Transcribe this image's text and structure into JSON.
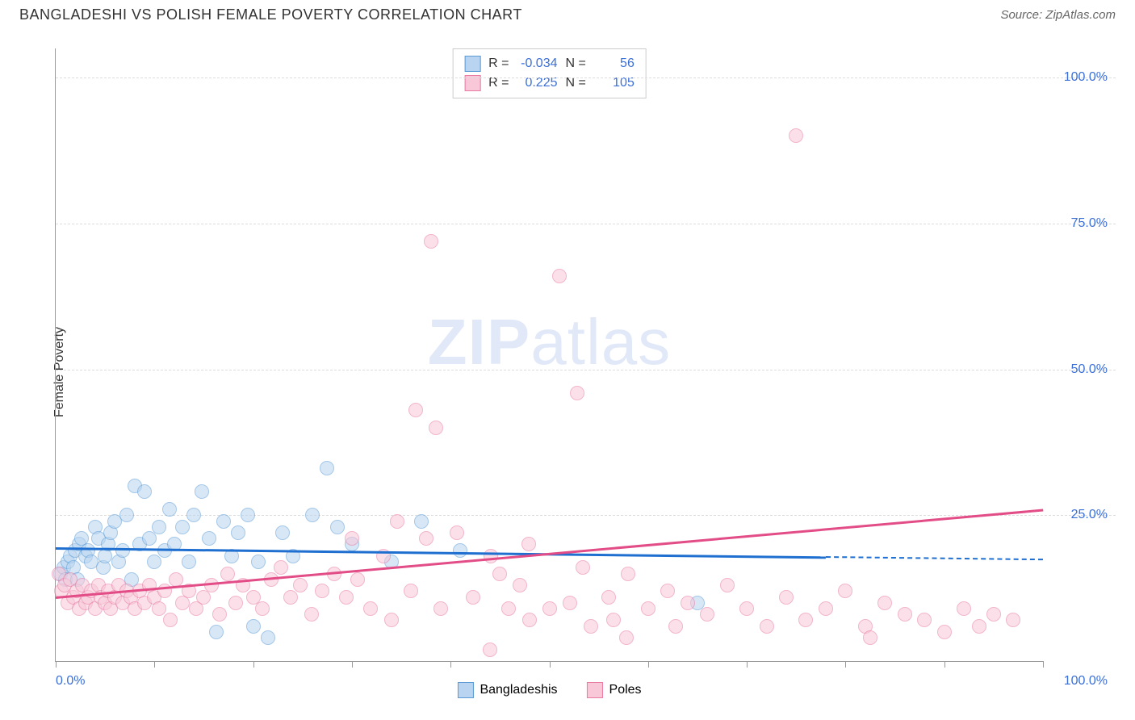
{
  "header": {
    "title": "BANGLADESHI VS POLISH FEMALE POVERTY CORRELATION CHART",
    "source": "Source: ZipAtlas.com"
  },
  "chart": {
    "type": "scatter",
    "y_axis_label": "Female Poverty",
    "background_color": "#ffffff",
    "grid_color": "#dddddd",
    "axis_color": "#999999",
    "ylim": [
      0,
      105
    ],
    "xlim": [
      0,
      100
    ],
    "y_ticks": [
      {
        "v": 25,
        "label": "25.0%"
      },
      {
        "v": 50,
        "label": "50.0%"
      },
      {
        "v": 75,
        "label": "75.0%"
      },
      {
        "v": 100,
        "label": "100.0%"
      }
    ],
    "x_ticks_at": [
      0,
      10,
      20,
      30,
      40,
      50,
      60,
      70,
      80,
      90,
      100
    ],
    "x_labels": [
      {
        "v": 0,
        "label": "0.0%"
      },
      {
        "v": 100,
        "label": "100.0%"
      }
    ],
    "watermark": {
      "bold": "ZIP",
      "rest": "atlas"
    },
    "series": [
      {
        "id": "bangladeshis",
        "label": "Bangladeshis",
        "fill": "#b8d4f0",
        "stroke": "#5a9bd5",
        "fill_opacity": 0.55,
        "marker_r": 9,
        "trend": {
          "color": "#1f6fd0",
          "y_start": 19.5,
          "y_end": 17.5,
          "solid_until_x": 78
        },
        "stats": {
          "R": "-0.034",
          "N": "56"
        },
        "points": [
          [
            0.5,
            15
          ],
          [
            0.8,
            16
          ],
          [
            1.0,
            14
          ],
          [
            1.2,
            17
          ],
          [
            1.5,
            18
          ],
          [
            1.8,
            16
          ],
          [
            2.0,
            19
          ],
          [
            2.2,
            14
          ],
          [
            2.4,
            20
          ],
          [
            2.6,
            21
          ],
          [
            3.0,
            18
          ],
          [
            3.3,
            19
          ],
          [
            3.6,
            17
          ],
          [
            4.0,
            23
          ],
          [
            4.3,
            21
          ],
          [
            4.8,
            16
          ],
          [
            5.0,
            18
          ],
          [
            5.3,
            20
          ],
          [
            5.6,
            22
          ],
          [
            6.0,
            24
          ],
          [
            6.4,
            17
          ],
          [
            6.8,
            19
          ],
          [
            7.2,
            25
          ],
          [
            7.7,
            14
          ],
          [
            8.0,
            30
          ],
          [
            8.5,
            20
          ],
          [
            9.0,
            29
          ],
          [
            9.5,
            21
          ],
          [
            10.0,
            17
          ],
          [
            10.5,
            23
          ],
          [
            11.0,
            19
          ],
          [
            11.5,
            26
          ],
          [
            12.0,
            20
          ],
          [
            12.8,
            23
          ],
          [
            13.5,
            17
          ],
          [
            14.0,
            25
          ],
          [
            14.8,
            29
          ],
          [
            15.5,
            21
          ],
          [
            16.3,
            5
          ],
          [
            17.0,
            24
          ],
          [
            17.8,
            18
          ],
          [
            18.5,
            22
          ],
          [
            19.5,
            25
          ],
          [
            20.0,
            6
          ],
          [
            20.5,
            17
          ],
          [
            21.5,
            4
          ],
          [
            23.0,
            22
          ],
          [
            24.0,
            18
          ],
          [
            26.0,
            25
          ],
          [
            27.5,
            33
          ],
          [
            28.5,
            23
          ],
          [
            30.0,
            20
          ],
          [
            34.0,
            17
          ],
          [
            37.0,
            24
          ],
          [
            41.0,
            19
          ],
          [
            65.0,
            10
          ]
        ]
      },
      {
        "id": "poles",
        "label": "Poles",
        "fill": "#f8c8d8",
        "stroke": "#e87aa4",
        "fill_opacity": 0.55,
        "marker_r": 9,
        "trend": {
          "color": "#e34d87",
          "y_start": 11,
          "y_end": 26,
          "solid_until_x": 100
        },
        "stats": {
          "R": "0.225",
          "N": "105"
        },
        "points": [
          [
            0.3,
            15
          ],
          [
            0.6,
            12
          ],
          [
            0.9,
            13
          ],
          [
            1.2,
            10
          ],
          [
            1.5,
            14
          ],
          [
            1.8,
            11
          ],
          [
            2.1,
            12
          ],
          [
            2.4,
            9
          ],
          [
            2.7,
            13
          ],
          [
            3.0,
            10
          ],
          [
            3.3,
            11
          ],
          [
            3.6,
            12
          ],
          [
            4.0,
            9
          ],
          [
            4.3,
            13
          ],
          [
            4.6,
            11
          ],
          [
            5.0,
            10
          ],
          [
            5.3,
            12
          ],
          [
            5.6,
            9
          ],
          [
            6.0,
            11
          ],
          [
            6.4,
            13
          ],
          [
            6.8,
            10
          ],
          [
            7.2,
            12
          ],
          [
            7.6,
            11
          ],
          [
            8.0,
            9
          ],
          [
            8.5,
            12
          ],
          [
            9.0,
            10
          ],
          [
            9.5,
            13
          ],
          [
            10.0,
            11
          ],
          [
            10.5,
            9
          ],
          [
            11.0,
            12
          ],
          [
            11.6,
            7
          ],
          [
            12.2,
            14
          ],
          [
            12.8,
            10
          ],
          [
            13.5,
            12
          ],
          [
            14.2,
            9
          ],
          [
            15.0,
            11
          ],
          [
            15.8,
            13
          ],
          [
            16.6,
            8
          ],
          [
            17.4,
            15
          ],
          [
            18.2,
            10
          ],
          [
            19.0,
            13
          ],
          [
            20.0,
            11
          ],
          [
            20.9,
            9
          ],
          [
            21.8,
            14
          ],
          [
            22.8,
            16
          ],
          [
            23.8,
            11
          ],
          [
            24.8,
            13
          ],
          [
            25.9,
            8
          ],
          [
            27.0,
            12
          ],
          [
            28.2,
            15
          ],
          [
            29.4,
            11
          ],
          [
            30.0,
            21
          ],
          [
            30.6,
            14
          ],
          [
            31.9,
            9
          ],
          [
            33.2,
            18
          ],
          [
            34.0,
            7
          ],
          [
            34.6,
            24
          ],
          [
            36.0,
            12
          ],
          [
            36.5,
            43
          ],
          [
            37.5,
            21
          ],
          [
            38.0,
            72
          ],
          [
            38.5,
            40
          ],
          [
            39.0,
            9
          ],
          [
            40.6,
            22
          ],
          [
            42.3,
            11
          ],
          [
            44.0,
            2
          ],
          [
            44.1,
            18
          ],
          [
            45.0,
            15
          ],
          [
            45.9,
            9
          ],
          [
            47.0,
            13
          ],
          [
            47.9,
            20
          ],
          [
            48.0,
            7
          ],
          [
            50.0,
            9
          ],
          [
            51.0,
            66
          ],
          [
            52.1,
            10
          ],
          [
            52.8,
            46
          ],
          [
            53.4,
            16
          ],
          [
            54.2,
            6
          ],
          [
            56.0,
            11
          ],
          [
            56.5,
            7
          ],
          [
            57.8,
            4
          ],
          [
            58.0,
            15
          ],
          [
            60.0,
            9
          ],
          [
            62.0,
            12
          ],
          [
            62.8,
            6
          ],
          [
            64.0,
            10
          ],
          [
            66.0,
            8
          ],
          [
            68.0,
            13
          ],
          [
            70.0,
            9
          ],
          [
            72.0,
            6
          ],
          [
            74.0,
            11
          ],
          [
            75.0,
            90
          ],
          [
            76.0,
            7
          ],
          [
            78.0,
            9
          ],
          [
            80.0,
            12
          ],
          [
            82.0,
            6
          ],
          [
            82.5,
            4
          ],
          [
            84.0,
            10
          ],
          [
            86.0,
            8
          ],
          [
            88.0,
            7
          ],
          [
            90.0,
            5
          ],
          [
            92.0,
            9
          ],
          [
            93.5,
            6
          ],
          [
            95.0,
            8
          ],
          [
            97.0,
            7
          ]
        ]
      }
    ],
    "stat_box": {
      "value_color": "#3b6fd8",
      "key_color": "#333333"
    },
    "legend_series_order": [
      "bangladeshis",
      "poles"
    ],
    "tick_label_color": "#3b6fd8",
    "tick_fontsize": 16,
    "title_fontsize": 18
  }
}
